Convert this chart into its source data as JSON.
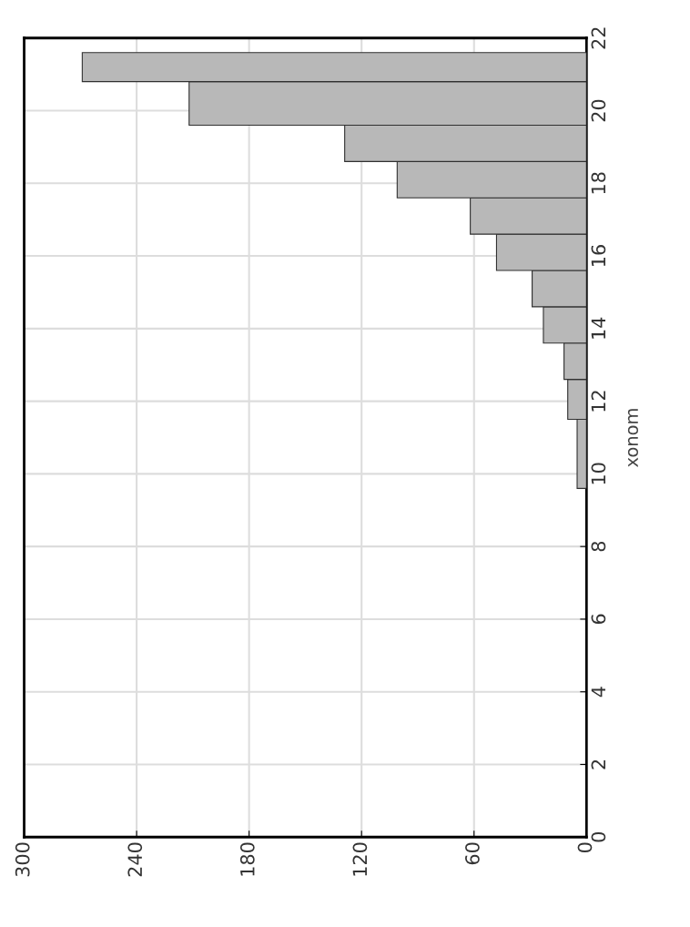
{
  "chart_data": {
    "type": "histogram",
    "orientation": "horizontal",
    "ylabel": "xonom",
    "bins": [
      9.6,
      11.5,
      12.6,
      13.6,
      14.6,
      15.6,
      16.6,
      17.6,
      18.6,
      19.6,
      20.8,
      21.6
    ],
    "values": [
      5,
      10,
      12,
      23,
      29,
      48,
      62,
      101,
      129,
      212,
      269
    ],
    "color": "#b8b8b8",
    "xlim": [
      300,
      0
    ],
    "xticks": [
      0,
      60,
      120,
      180,
      240,
      300
    ],
    "ylim": [
      0,
      22
    ],
    "yticks": [
      0,
      2,
      4,
      6,
      8,
      10,
      12,
      14,
      16,
      18,
      20,
      22
    ],
    "grid": true
  }
}
